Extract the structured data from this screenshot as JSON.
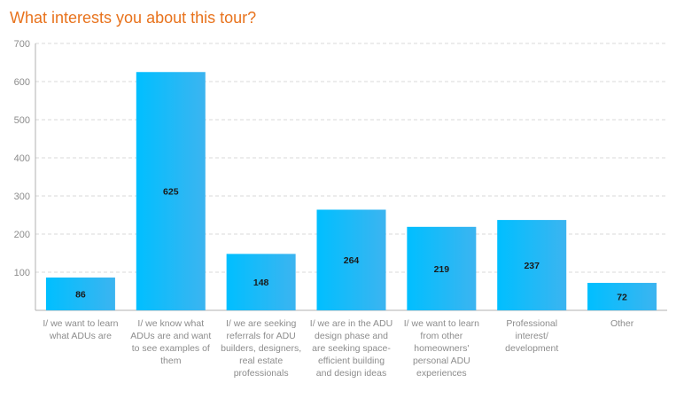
{
  "chart_data": {
    "type": "bar",
    "title": "What interests you about this tour?",
    "categories": [
      [
        "I/ we want to learn",
        "what ADUs are"
      ],
      [
        "I/ we know what",
        "ADUs are and want",
        "to see examples of",
        "them"
      ],
      [
        "I/ we are seeking",
        "referrals for ADU",
        "builders, designers,",
        "real estate",
        "professionals"
      ],
      [
        "I/ we are in the ADU",
        "design phase and",
        "are seeking space-",
        "efficient building",
        "and design ideas"
      ],
      [
        "I/ we want to learn",
        "from other",
        "homeowners'",
        "personal ADU",
        "experiences"
      ],
      [
        "Professional",
        "interest/",
        "development"
      ],
      [
        "Other"
      ]
    ],
    "values": [
      86,
      625,
      148,
      264,
      219,
      237,
      72
    ],
    "ylim": [
      0,
      700
    ],
    "yticks": [
      100,
      200,
      300,
      400,
      500,
      600,
      700
    ],
    "grid": true,
    "legend": "none",
    "colors": {
      "bar_start": "#00bfff",
      "bar_end": "#3cb4f0",
      "title": "#e8731d",
      "grid": "#d9d9d9",
      "axis": "#b0b0b0"
    }
  }
}
